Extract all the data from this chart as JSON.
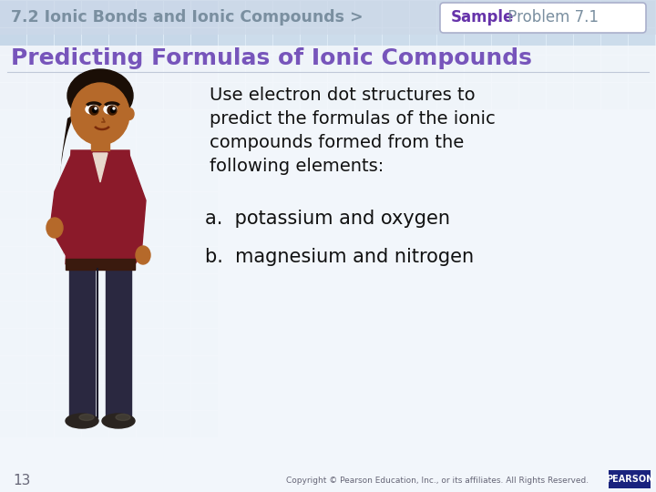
{
  "bg_tile_color": "#b8cce0",
  "bg_main": "#ddeaf5",
  "bg_white_area": "#f5f8fc",
  "header_text": "7.2 Ionic Bonds and Ionic Compounds >",
  "header_text_color": "#7a8fa0",
  "sample_word": "Sample",
  "sample_word_color": "#6633aa",
  "problem_text": " Problem 7.1",
  "problem_text_color": "#7a8fa0",
  "sample_box_edge": "#aaaacc",
  "title_text": "Predicting Formulas of Ionic Compounds",
  "title_color": "#7755bb",
  "body_lines": [
    "Use electron dot structures to",
    "predict the formulas of the ionic",
    "compounds formed from the",
    "following elements:"
  ],
  "body_color": "#111111",
  "item_a": "a.  potassium and oxygen",
  "item_b": "b.  magnesium and nitrogen",
  "item_color": "#111111",
  "footer_num": "13",
  "footer_copy": "Copyright © Pearson Education, Inc., or its affiliates. All Rights Reserved.",
  "footer_color": "#666677",
  "pearson_bg": "#1a237e",
  "pearson_text": "PEARSON"
}
